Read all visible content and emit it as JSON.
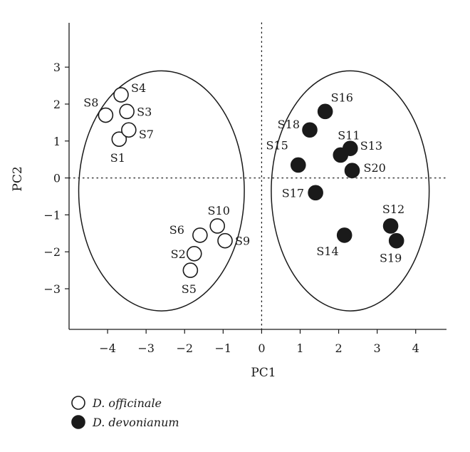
{
  "chart_data": {
    "type": "scatter",
    "title": "",
    "xlabel": "PC1",
    "ylabel": "PC2",
    "xlim": [
      -5,
      4.8
    ],
    "ylim": [
      -4.1,
      4.2
    ],
    "xticks": [
      -4,
      -3,
      -2,
      -1,
      0,
      1,
      2,
      3,
      4
    ],
    "yticks": [
      -3,
      -2,
      -1,
      0,
      1,
      2,
      3
    ],
    "reference_lines": {
      "x": 0,
      "y": 0,
      "style": "dotted"
    },
    "grid": false,
    "legend_position": "bottom-left",
    "series": [
      {
        "name": "D. officinale",
        "marker": "open-circle",
        "color": "#1a1a1a",
        "points": [
          {
            "label": "S1",
            "x": -3.7,
            "y": 1.05
          },
          {
            "label": "S2",
            "x": -1.75,
            "y": -2.05
          },
          {
            "label": "S3",
            "x": -3.5,
            "y": 1.8
          },
          {
            "label": "S4",
            "x": -3.65,
            "y": 2.25
          },
          {
            "label": "S5",
            "x": -1.85,
            "y": -2.5
          },
          {
            "label": "S6",
            "x": -1.6,
            "y": -1.55
          },
          {
            "label": "S7",
            "x": -3.45,
            "y": 1.3
          },
          {
            "label": "S8",
            "x": -4.05,
            "y": 1.7
          },
          {
            "label": "S9",
            "x": -0.95,
            "y": -1.7
          },
          {
            "label": "S10",
            "x": -1.15,
            "y": -1.3
          }
        ]
      },
      {
        "name": "D. devonianum",
        "marker": "filled-circle",
        "color": "#1a1a1a",
        "points": [
          {
            "label": "S11",
            "x": 2.05,
            "y": 0.62
          },
          {
            "label": "S12",
            "x": 3.35,
            "y": -1.3
          },
          {
            "label": "S13",
            "x": 2.3,
            "y": 0.8
          },
          {
            "label": "S14",
            "x": 2.15,
            "y": -1.55
          },
          {
            "label": "S15",
            "x": 0.95,
            "y": 0.35
          },
          {
            "label": "S16",
            "x": 1.65,
            "y": 1.8
          },
          {
            "label": "S17",
            "x": 1.4,
            "y": -0.4
          },
          {
            "label": "S18",
            "x": 1.25,
            "y": 1.3
          },
          {
            "label": "S19",
            "x": 3.5,
            "y": -1.7
          },
          {
            "label": "S20",
            "x": 2.35,
            "y": 0.2
          }
        ]
      }
    ],
    "ellipses": [
      {
        "group": "D. officinale",
        "cx": -2.6,
        "cy": -0.35,
        "rx": 2.15,
        "ry": 3.25
      },
      {
        "group": "D. devonianum",
        "cx": 2.3,
        "cy": -0.35,
        "rx": 2.05,
        "ry": 3.25
      }
    ]
  },
  "legend": [
    {
      "label": "D. officinale",
      "marker": "open-circle"
    },
    {
      "label": "D. devonianum",
      "marker": "filled-circle"
    }
  ]
}
